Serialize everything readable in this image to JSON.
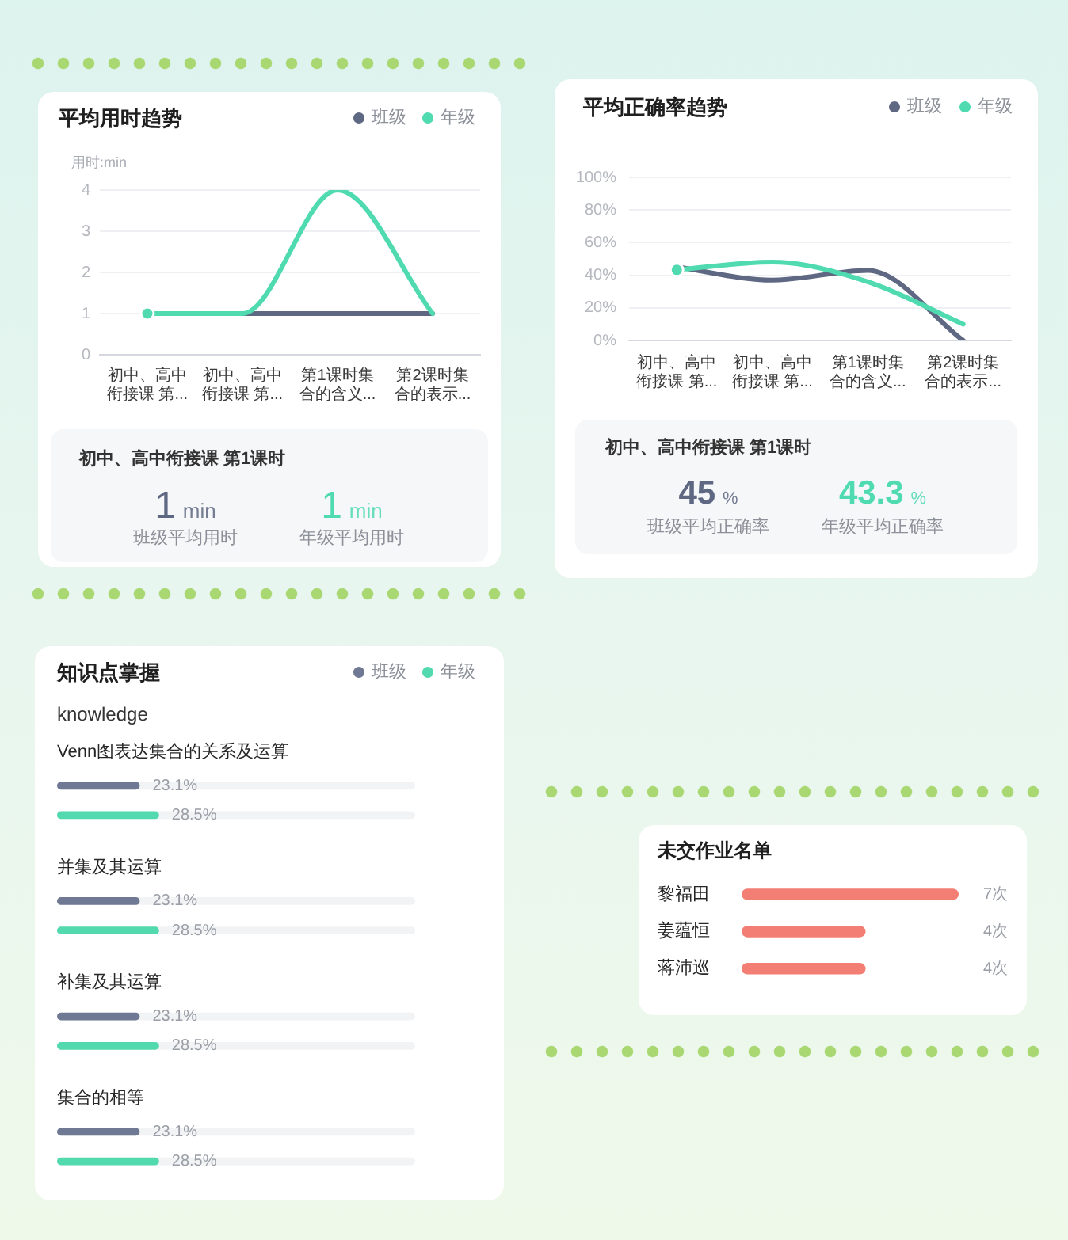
{
  "chart_data": [
    {
      "type": "line",
      "title": "平均用时趋势",
      "ylabel": "用时:min",
      "categories": [
        "初中、高中衔接课 第...",
        "初中、高中衔接课 第...",
        "第1课时集合的含义...",
        "第2课时集合的表示..."
      ],
      "series": [
        {
          "name": "班级",
          "color": "#5f6882",
          "values": [
            1,
            1,
            1,
            1
          ]
        },
        {
          "name": "年级",
          "color": "#4fdab0",
          "values": [
            1,
            1,
            4,
            1
          ]
        },
        {
          "type": "scatter",
          "marker": "circle",
          "color": "#4fdab0",
          "values": [
            1,
            null,
            null,
            null
          ]
        }
      ],
      "ylim": [
        0,
        4
      ],
      "yticks": [
        0,
        1,
        2,
        3,
        4
      ],
      "grid": "y",
      "legend": "top right",
      "marker": "none",
      "annotations": [
        "初中、高中衔接课 第1课时",
        "1 min",
        "班级平均用时",
        "1 min",
        "年级平均用时"
      ]
    },
    {
      "type": "line",
      "title": "平均正确率趋势",
      "categories": [
        "初中、高中衔接课 第...",
        "初中、高中衔接课 第...",
        "第1课时集合的含义...",
        "第2课时集合的表示..."
      ],
      "series": [
        {
          "name": "班级",
          "color": "#5f6882",
          "values": [
            45,
            37,
            43,
            0
          ]
        },
        {
          "name": "年级",
          "color": "#4fdab0",
          "values": [
            43.3,
            48,
            36,
            10
          ]
        },
        {
          "type": "scatter",
          "marker": "circle",
          "color": "#4fdab0",
          "values": [
            43.3,
            null,
            null,
            null
          ]
        }
      ],
      "ylim": [
        0,
        100
      ],
      "yticks": [
        {
          "value": 0,
          "label": "0%"
        },
        {
          "value": 20,
          "label": "20%"
        },
        {
          "value": 40,
          "label": "40%"
        },
        {
          "value": 60,
          "label": "60%"
        },
        {
          "value": 80,
          "label": "80%"
        },
        {
          "value": 100,
          "label": "100%"
        }
      ],
      "grid": "y",
      "legend": "top right",
      "marker": "none",
      "annotations": [
        "初中、高中衔接课 第1课时",
        "45 %",
        "班级平均正确率",
        "43.3 %",
        "年级平均正确率"
      ]
    },
    {
      "type": "bar",
      "orientation": "horizontal",
      "title": "知识点掌握",
      "subtitle": "knowledge",
      "categories": [
        "Venn图表达集合的关系及运算",
        "并集及其运算",
        "补集及其运算",
        "集合的相等"
      ],
      "series": [
        {
          "name": "班级",
          "color": "#6f7994",
          "values": [
            23.1,
            23.1,
            23.1,
            23.1
          ],
          "value_labels": [
            "23.1%",
            "23.1%",
            "23.1%",
            "23.1%"
          ]
        },
        {
          "name": "年级",
          "color": "#52d9ad",
          "values": [
            28.5,
            28.5,
            28.5,
            28.5
          ],
          "value_labels": [
            "28.5%",
            "28.5%",
            "28.5%",
            "28.5%"
          ]
        }
      ],
      "xlim": [
        0,
        100
      ],
      "tick_labels": "y",
      "legend": "top right"
    },
    {
      "type": "bar",
      "orientation": "horizontal",
      "title": "未交作业名单",
      "categories": [
        "黎福田",
        "姜蕴恒",
        "蒋沛巡"
      ],
      "values": [
        7,
        4,
        4
      ],
      "color": "#f37f74",
      "value_labels": [
        "7次",
        "4次",
        "4次"
      ],
      "xlim": [
        0,
        7
      ],
      "tick_labels": "y"
    }
  ]
}
